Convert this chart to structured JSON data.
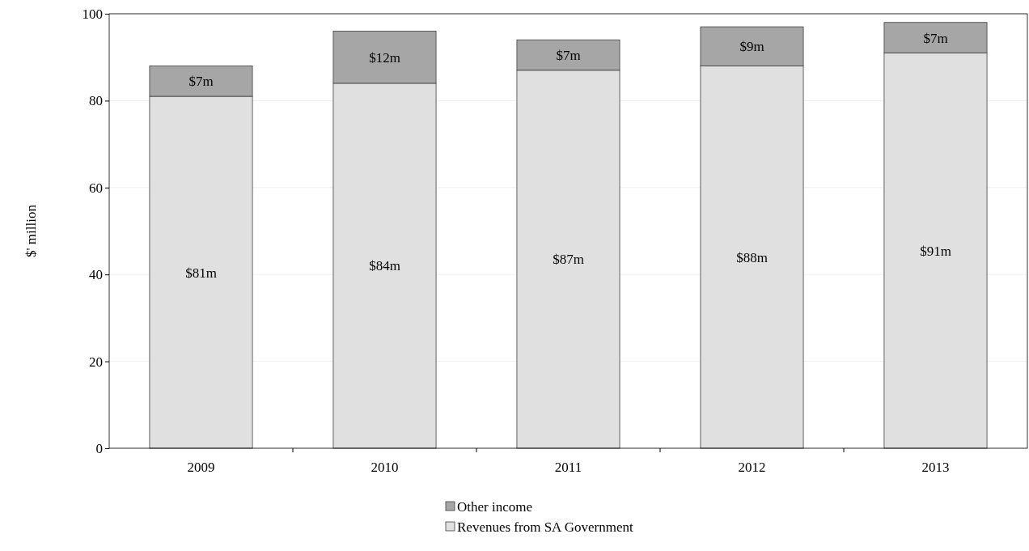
{
  "chart_data": {
    "type": "bar",
    "stacked": true,
    "ylabel": "$' million",
    "categories": [
      "2009",
      "2010",
      "2011",
      "2012",
      "2013"
    ],
    "series": [
      {
        "name": "Revenues from SA Government",
        "color": "#e0e0e0",
        "values": [
          81,
          84,
          87,
          88,
          91
        ],
        "value_labels": [
          "$81m",
          "$84m",
          "$87m",
          "$88m",
          "$91m"
        ]
      },
      {
        "name": "Other income",
        "color": "#a6a6a6",
        "values": [
          7,
          12,
          7,
          9,
          7
        ],
        "value_labels": [
          "$7m",
          "$12m",
          "$7m",
          "$9m",
          "$7m"
        ]
      }
    ],
    "ylim": [
      0,
      100
    ],
    "yticks": [
      0,
      20,
      40,
      60,
      80,
      100
    ],
    "grid": "y",
    "legend": "bottom"
  }
}
